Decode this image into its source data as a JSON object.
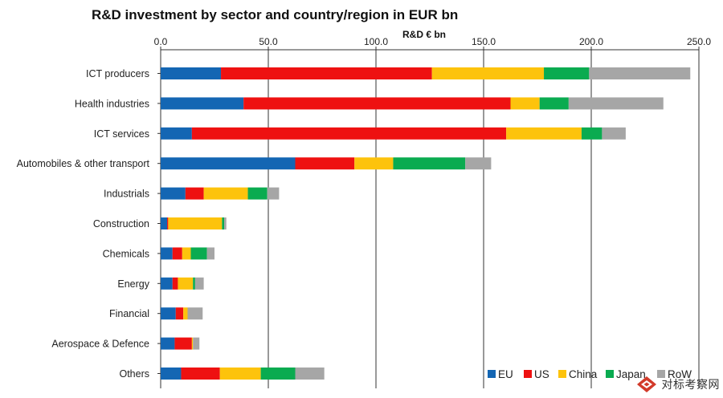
{
  "chart_data": {
    "type": "bar",
    "orientation": "horizontal",
    "stacked": true,
    "title": "R&D investment by sector and country/region in EUR bn",
    "xlabel": "R&D € bn",
    "xlim": [
      0,
      250
    ],
    "xticks": [
      "0.0",
      "50.0",
      "100.0",
      "150.0",
      "200.0",
      "250.0"
    ],
    "categories": [
      "ICT producers",
      "Health industries",
      "ICT services",
      "Automobiles & other transport",
      "Industrials",
      "Construction",
      "Chemicals",
      "Energy",
      "Financial",
      "Aerospace & Defence",
      "Others"
    ],
    "series": [
      {
        "name": "EU",
        "color": "#1466b3",
        "values": [
          28,
          38.5,
          14.5,
          62.5,
          11.5,
          3,
          5.5,
          5.5,
          7,
          6.5,
          9.5
        ]
      },
      {
        "name": "US",
        "color": "#ee1111",
        "values": [
          98,
          124,
          146,
          27.5,
          8.5,
          0.5,
          4.5,
          2.5,
          3.5,
          8,
          18
        ]
      },
      {
        "name": "China",
        "color": "#fdc30c",
        "values": [
          52,
          13.5,
          35,
          18,
          20.5,
          25,
          4,
          7,
          2,
          0.5,
          19
        ]
      },
      {
        "name": "Japan",
        "color": "#0aab50",
        "values": [
          21,
          13.5,
          9.5,
          33.5,
          9,
          1,
          7.5,
          1,
          0,
          0,
          16
        ]
      },
      {
        "name": "RoW",
        "color": "#a6a6a6",
        "values": [
          47,
          44,
          11,
          12,
          5.5,
          1,
          3.5,
          4,
          7,
          3,
          13.5
        ]
      }
    ],
    "legend": {
      "position": "bottom-right"
    },
    "grid": "vertical"
  },
  "watermark": {
    "text": "对标考察网"
  }
}
